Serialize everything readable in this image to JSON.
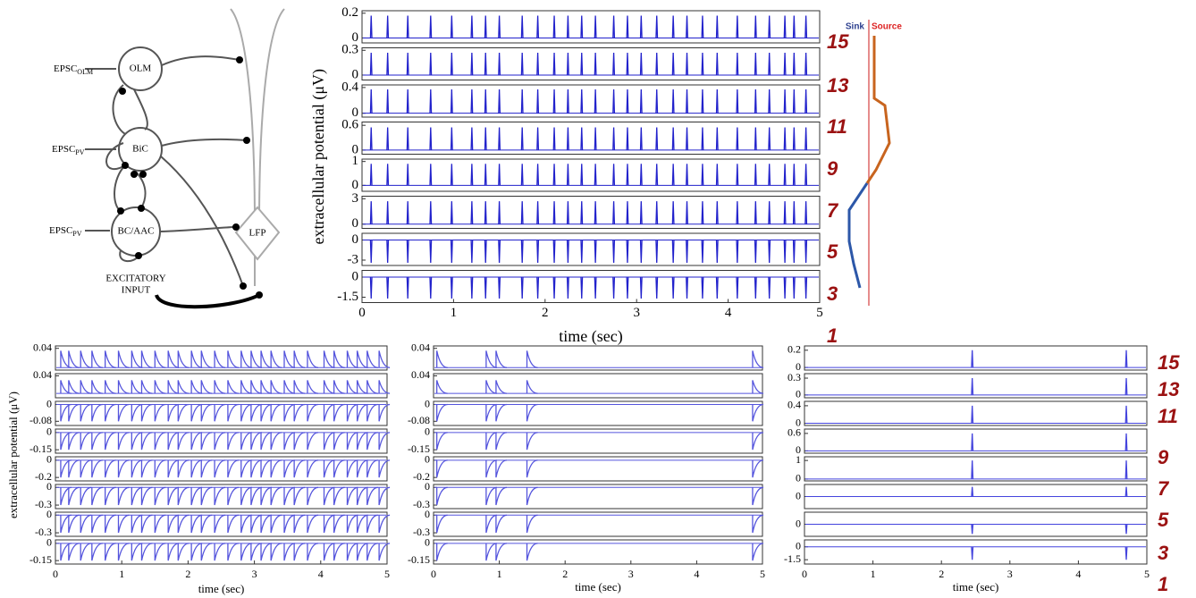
{
  "diagram": {
    "epsc": [
      "EPSC",
      "EPSC",
      "EPSC"
    ],
    "epsc_sub": [
      "OLM",
      "PV",
      "PV"
    ],
    "nodes": [
      "OLM",
      "BiC",
      "BC/AAC",
      "LFP"
    ],
    "input": [
      "EXCITATORY",
      "INPUT"
    ]
  },
  "profile": {
    "sink": "Sink",
    "source": "Source"
  },
  "depth_labels": [
    "15",
    "13",
    "11",
    "9",
    "7",
    "5",
    "3",
    "1"
  ],
  "chart_data": [
    {
      "type": "traces",
      "ylabel": "extracellular potential (μV)",
      "xlabel": "time (sec)",
      "xlim": [
        0,
        5
      ],
      "xticks": [
        0,
        1,
        2,
        3,
        4,
        5
      ],
      "color": "#2222cc",
      "spike_shape": "sharp",
      "spike_times": [
        0.1,
        0.28,
        0.5,
        0.75,
        0.98,
        1.2,
        1.35,
        1.5,
        1.75,
        1.92,
        2.1,
        2.25,
        2.4,
        2.55,
        2.75,
        2.9,
        3.05,
        3.22,
        3.4,
        3.55,
        3.72,
        3.88,
        4.1,
        4.3,
        4.45,
        4.62,
        4.72,
        4.85
      ],
      "panels": [
        {
          "ylim": [
            -0.04,
            0.22
          ],
          "yticks": [
            0,
            0.2
          ],
          "spike_peak": 0.18
        },
        {
          "ylim": [
            -0.06,
            0.33
          ],
          "yticks": [
            0,
            0.3
          ],
          "spike_peak": 0.27
        },
        {
          "ylim": [
            -0.06,
            0.44
          ],
          "yticks": [
            0,
            0.4
          ],
          "spike_peak": 0.37
        },
        {
          "ylim": [
            -0.1,
            0.68
          ],
          "yticks": [
            0,
            0.6
          ],
          "spike_peak": 0.55
        },
        {
          "ylim": [
            -0.25,
            1.1
          ],
          "yticks": [
            0,
            1
          ],
          "spike_peak": 0.9
        },
        {
          "ylim": [
            -0.5,
            3.3
          ],
          "yticks": [
            0,
            3
          ],
          "spike_peak": 2.7
        },
        {
          "ylim": [
            -3.8,
            1
          ],
          "yticks": [
            0,
            -3
          ],
          "spike_peak": -3.4
        },
        {
          "ylim": [
            -1.9,
            0.5
          ],
          "yticks": [
            0,
            -1.5
          ],
          "spike_peak": -1.6
        }
      ]
    },
    {
      "type": "traces",
      "ylabel": "extracellular potential (μV)",
      "xlabel": "time (sec)",
      "xlim": [
        0,
        5
      ],
      "xticks": [
        0,
        1,
        2,
        3,
        4,
        5
      ],
      "color": "#5555dd",
      "spike_shape": "decay",
      "spike_times": [
        0.08,
        0.2,
        0.38,
        0.55,
        0.75,
        0.95,
        1.15,
        1.3,
        1.5,
        1.7,
        1.85,
        2.05,
        2.2,
        2.4,
        2.6,
        2.8,
        2.95,
        3.1,
        3.25,
        3.45,
        3.6,
        3.8,
        4.05,
        4.2,
        4.4,
        4.55,
        4.7,
        4.88
      ],
      "panels": [
        {
          "ylim": [
            -0.005,
            0.045
          ],
          "yticks": [
            0.04
          ],
          "spike_peak": 0.035
        },
        {
          "ylim": [
            -0.01,
            0.045
          ],
          "yticks": [
            0.04
          ],
          "spike_peak": 0.03
        },
        {
          "ylim": [
            -0.1,
            0.015
          ],
          "yticks": [
            0,
            -0.08
          ],
          "spike_peak": -0.08
        },
        {
          "ylim": [
            -0.18,
            0.03
          ],
          "yticks": [
            0,
            -0.15
          ],
          "spike_peak": -0.15
        },
        {
          "ylim": [
            -0.24,
            0.04
          ],
          "yticks": [
            0,
            -0.2
          ],
          "spike_peak": -0.2
        },
        {
          "ylim": [
            -0.36,
            0.05
          ],
          "yticks": [
            0,
            -0.3
          ],
          "spike_peak": -0.3
        },
        {
          "ylim": [
            -0.36,
            0.05
          ],
          "yticks": [
            0,
            -0.3
          ],
          "spike_peak": -0.3
        },
        {
          "ylim": [
            -0.18,
            0.03
          ],
          "yticks": [
            0,
            -0.15
          ],
          "spike_peak": -0.15
        }
      ]
    },
    {
      "type": "traces",
      "xlabel": "time (sec)",
      "xlim": [
        0,
        5
      ],
      "xticks": [
        0,
        1,
        2,
        3,
        4,
        5
      ],
      "color": "#5555dd",
      "spike_shape": "decay",
      "spike_times": [
        0.05,
        0.8,
        0.95,
        1.42,
        4.85
      ],
      "panels": [
        {
          "ylim": [
            -0.005,
            0.045
          ],
          "yticks": [
            0.04
          ],
          "spike_peak": 0.035
        },
        {
          "ylim": [
            -0.01,
            0.045
          ],
          "yticks": [
            0.04
          ],
          "spike_peak": 0.03
        },
        {
          "ylim": [
            -0.1,
            0.015
          ],
          "yticks": [
            0,
            -0.08
          ],
          "spike_peak": -0.08
        },
        {
          "ylim": [
            -0.18,
            0.03
          ],
          "yticks": [
            0,
            -0.15
          ],
          "spike_peak": -0.15
        },
        {
          "ylim": [
            -0.24,
            0.04
          ],
          "yticks": [
            0,
            -0.2
          ],
          "spike_peak": -0.2
        },
        {
          "ylim": [
            -0.36,
            0.05
          ],
          "yticks": [
            0,
            -0.3
          ],
          "spike_peak": -0.3
        },
        {
          "ylim": [
            -0.36,
            0.05
          ],
          "yticks": [
            0,
            -0.3
          ],
          "spike_peak": -0.3
        },
        {
          "ylim": [
            -0.18,
            0.03
          ],
          "yticks": [
            0,
            -0.15
          ],
          "spike_peak": -0.15
        }
      ]
    },
    {
      "type": "traces",
      "xlabel": "time (sec)",
      "xlim": [
        0,
        5
      ],
      "xticks": [
        0,
        1,
        2,
        3,
        4,
        5
      ],
      "color": "#4444dd",
      "spike_shape": "sharp",
      "spike_times": [
        2.45,
        4.7
      ],
      "panels": [
        {
          "ylim": [
            -0.03,
            0.25
          ],
          "yticks": [
            0,
            0.2
          ],
          "spike_peak": 0.2
        },
        {
          "ylim": [
            -0.05,
            0.38
          ],
          "yticks": [
            0,
            0.3
          ],
          "spike_peak": 0.3
        },
        {
          "ylim": [
            -0.05,
            0.5
          ],
          "yticks": [
            0,
            0.4
          ],
          "spike_peak": 0.4
        },
        {
          "ylim": [
            -0.08,
            0.75
          ],
          "yticks": [
            0,
            0.6
          ],
          "spike_peak": 0.6
        },
        {
          "ylim": [
            -0.1,
            1.2
          ],
          "yticks": [
            0,
            1
          ],
          "spike_peak": 1
        },
        {
          "ylim": [
            -1,
            1
          ],
          "yticks": [
            0
          ],
          "spike_peak": 0.8
        },
        {
          "ylim": [
            -1,
            1
          ],
          "yticks": [
            0
          ],
          "spike_peak": -0.8
        },
        {
          "ylim": [
            -2,
            0.8
          ],
          "yticks": [
            0,
            -1.5
          ],
          "spike_peak": -1.5
        }
      ]
    }
  ]
}
